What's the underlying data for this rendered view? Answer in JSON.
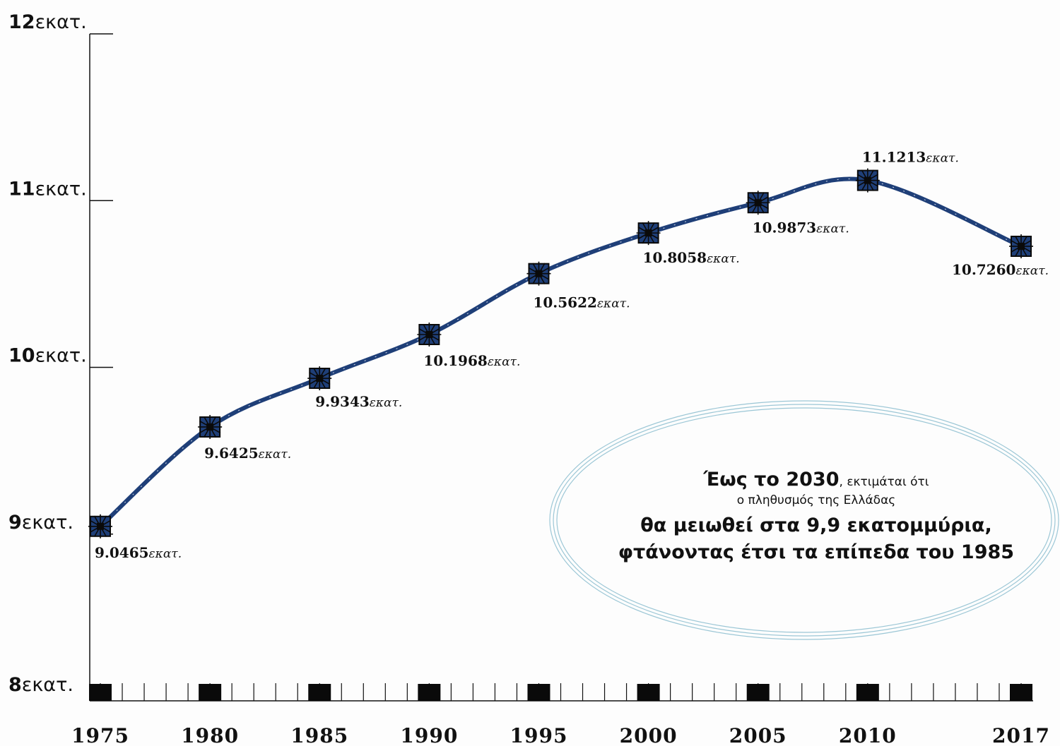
{
  "chart_data": {
    "type": "line",
    "title": "",
    "xlabel": "",
    "ylabel": "",
    "x": [
      "1975",
      "1980",
      "1985",
      "1990",
      "1995",
      "2000",
      "2005",
      "2010",
      "2017"
    ],
    "series": [
      {
        "values": [
          9.0465,
          9.6425,
          9.9343,
          10.1968,
          10.5622,
          10.8058,
          10.9873,
          11.1213,
          10.726
        ]
      }
    ],
    "data_labels": [
      {
        "value": "9.0465",
        "unit": "εκατ."
      },
      {
        "value": "9.6425",
        "unit": "εκατ."
      },
      {
        "value": "9.9343",
        "unit": "εκατ."
      },
      {
        "value": "10.1968",
        "unit": "εκατ."
      },
      {
        "value": "10.5622",
        "unit": "εκατ."
      },
      {
        "value": "10.8058",
        "unit": "εκατ."
      },
      {
        "value": "10.9873",
        "unit": "εκατ."
      },
      {
        "value": "11.1213",
        "unit": "εκατ."
      },
      {
        "value": "10.7260",
        "unit": "εκατ."
      }
    ],
    "yticks": [
      {
        "value": 8,
        "num": "8",
        "unit": "εκατ."
      },
      {
        "value": 9,
        "num": "9",
        "unit": "εκατ."
      },
      {
        "value": 10,
        "num": "10",
        "unit": "εκατ."
      },
      {
        "value": 11,
        "num": "11",
        "unit": "εκατ."
      },
      {
        "value": 12,
        "num": "12",
        "unit": "εκατ."
      }
    ],
    "ylim": [
      8,
      12
    ],
    "grid": false,
    "line_color": "#1f3f78",
    "marker_color": "#1f3f78"
  },
  "note": {
    "line1_bold": "Έως το 2030",
    "line1_rest": ", εκτιμάται ότι",
    "line2": "ο πληθυσμός της Ελλάδας",
    "line3": "θα μειωθεί στα 9,9 εκατομμύρια,",
    "line4": "φτάνοντας έτσι τα επίπεδα του 1985",
    "ellipse_color": "#9cc7d6"
  }
}
